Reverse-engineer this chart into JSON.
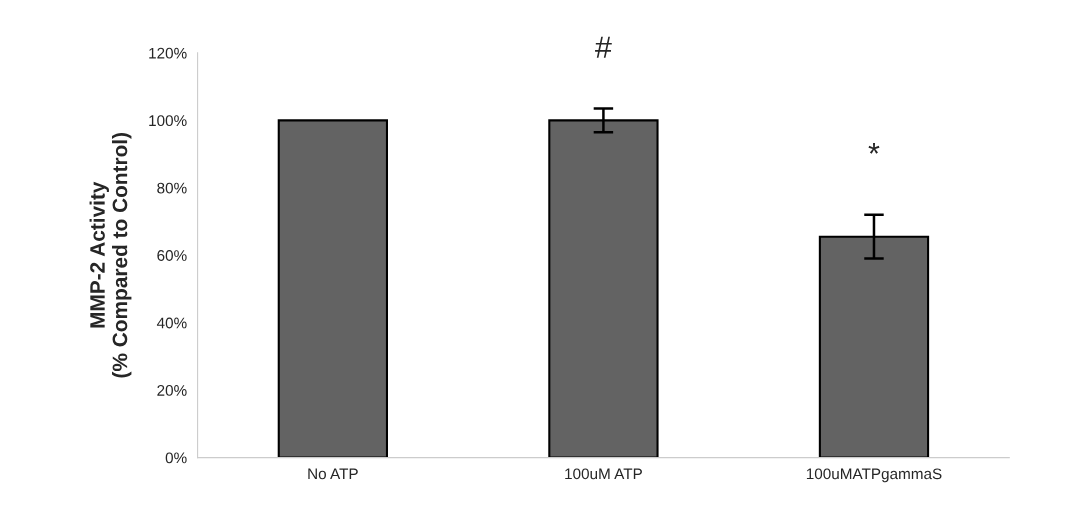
{
  "chart_data": {
    "type": "bar",
    "ylabel": "MMP-2 Activity\n(% Compared to Control)",
    "categories": [
      "No ATP",
      "100uM ATP",
      "100uMATPgammaS"
    ],
    "values": [
      100,
      100,
      65.5
    ],
    "errors": [
      null,
      3.5,
      6.5
    ],
    "color": "#636363",
    "ylim": [
      0,
      120
    ],
    "yticks": [
      {
        "value": 0,
        "label": "0%"
      },
      {
        "value": 20,
        "label": "20%"
      },
      {
        "value": 40,
        "label": "40%"
      },
      {
        "value": 60,
        "label": "60%"
      },
      {
        "value": 80,
        "label": "80%"
      },
      {
        "value": 100,
        "label": "100%"
      },
      {
        "value": 120,
        "label": "120%"
      }
    ],
    "grid": false,
    "annotations": [
      "#",
      "*"
    ]
  }
}
